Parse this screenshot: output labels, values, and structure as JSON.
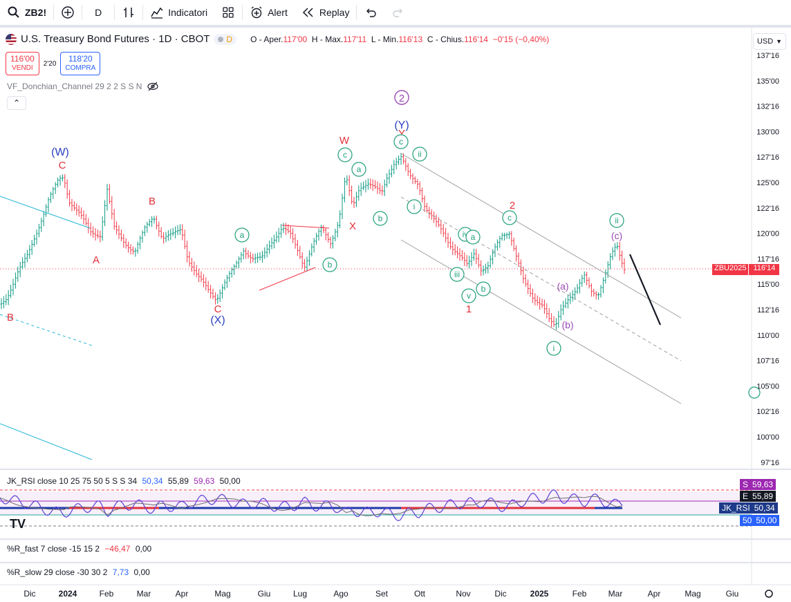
{
  "toolbar": {
    "symbol": "ZB2!",
    "interval": "D",
    "indicators_label": "Indicatori",
    "alert_label": "Alert",
    "replay_label": "Replay"
  },
  "legend": {
    "title": "U.S. Treasury Bond Futures · 1D · CBOT",
    "badge": "D",
    "o_label": "O - Aper.",
    "o_value": "117'00",
    "h_label": "H - Max.",
    "h_value": "117'11",
    "l_label": "L - Min.",
    "l_value": "116'13",
    "c_label": "C - Chius.",
    "c_value": "116'14",
    "change": "−0'15 (−0,40%)"
  },
  "trade": {
    "sell_price": "116'00",
    "sell_label": "VENDI",
    "spread": "2'20",
    "buy_price": "118'20",
    "buy_label": "COMPRA"
  },
  "indicator": "VF_Donchian_Channel 29 2 2 S S N",
  "currency": "USD",
  "price_axis": {
    "labels": [
      "137'16",
      "135'00",
      "132'16",
      "130'00",
      "127'16",
      "125'00",
      "122'16",
      "120'00",
      "117'16",
      "115'00",
      "112'16",
      "110'00",
      "107'16",
      "105'00",
      "102'16",
      "100'00",
      "97'16"
    ],
    "last_symbol": "ZBU2025",
    "last_price": "116'14"
  },
  "time_axis": [
    "Dic",
    "2024",
    "Feb",
    "Mar",
    "Apr",
    "Mag",
    "Giu",
    "Lug",
    "Ago",
    "Set",
    "Ott",
    "Nov",
    "Dic",
    "2025",
    "Feb",
    "Mar",
    "Apr",
    "Mag",
    "Giu"
  ],
  "wave_labels": {
    "blue": [
      "(W)",
      "(X)",
      "(Y)"
    ],
    "red": [
      "C",
      "B",
      "A",
      "B",
      "C",
      "W",
      "X",
      "Y",
      "2",
      "1"
    ],
    "circle_purple": "2",
    "green_circled": [
      "a",
      "b",
      "c",
      "a",
      "b",
      "c",
      "ii",
      "i",
      "iv",
      "a",
      "iii",
      "v",
      "b",
      "c",
      "i",
      "ii"
    ],
    "purple": [
      "(a)",
      "(b)",
      "(c)"
    ]
  },
  "rsi": {
    "legend": "JK_RSI close 10 25 75 50 5 S S 34",
    "v1": "50,34",
    "v2": "55,89",
    "v3": "59,63",
    "v4": "50,00",
    "tag_s": "S",
    "tag_e": "E",
    "tag_jk": "JK_RSI",
    "tag_50": "50"
  },
  "rfast": {
    "legend": "%R_fast 7 close -15 15 2",
    "v1": "−46,47",
    "v2": "0,00"
  },
  "rslow": {
    "legend": "%R_slow 29 close -30 30 2",
    "v1": "7,73",
    "v2": "0,00"
  },
  "colors": {
    "up": "#089981",
    "down": "#f23645",
    "blue": "#2962ff",
    "wave_blue": "#2a3fbf",
    "wave_red": "#e0313b",
    "green": "#1f9f7a",
    "purple": "#9c4bb5"
  }
}
